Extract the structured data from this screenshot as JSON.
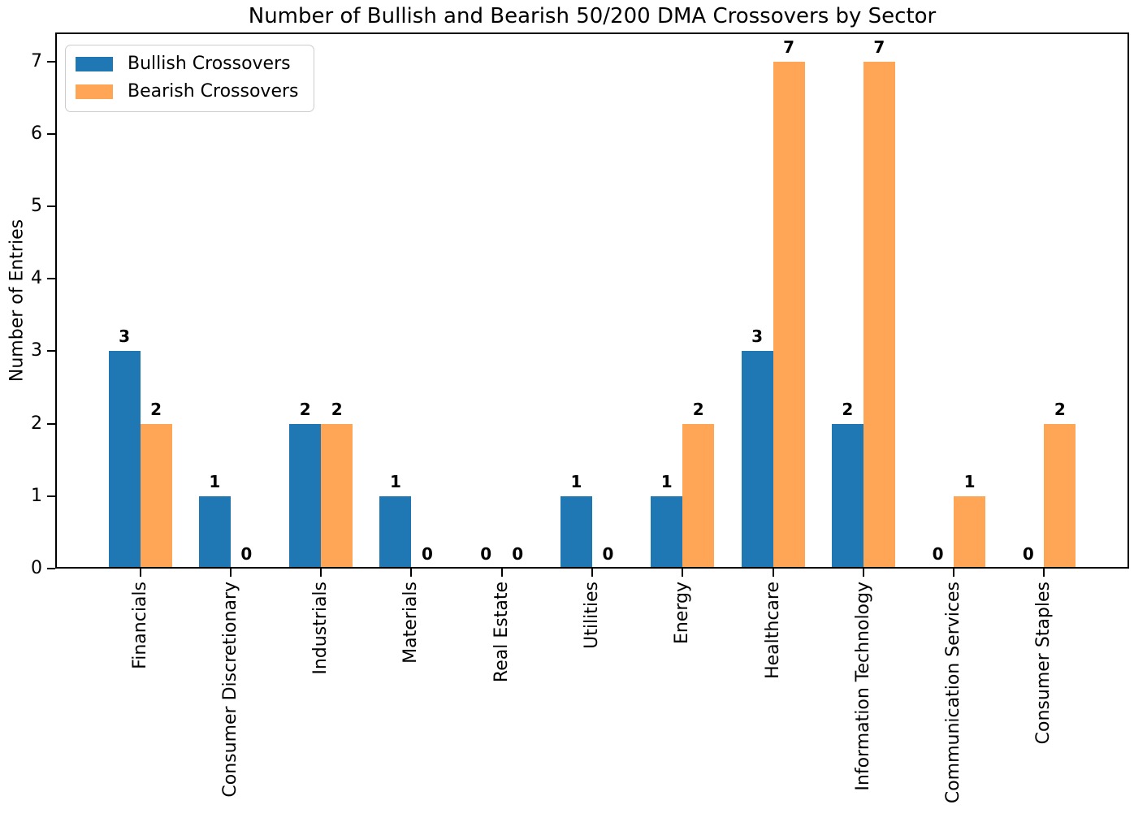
{
  "chart_data": {
    "type": "bar",
    "title": "Number of Bullish and Bearish 50/200 DMA Crossovers by Sector",
    "xlabel": "",
    "ylabel": "Number of Entries",
    "categories": [
      "Financials",
      "Consumer Discretionary",
      "Industrials",
      "Materials",
      "Real Estate",
      "Utilities",
      "Energy",
      "Healthcare",
      "Information Technology",
      "Communication Services",
      "Consumer Staples"
    ],
    "series": [
      {
        "name": "Bullish Crossovers",
        "color": "#1f77b4",
        "values": [
          3,
          1,
          2,
          1,
          0,
          1,
          1,
          3,
          2,
          0,
          0
        ]
      },
      {
        "name": "Bearish Crossovers",
        "color": "#ffa556",
        "values": [
          2,
          0,
          2,
          0,
          0,
          0,
          2,
          7,
          7,
          1,
          2
        ]
      }
    ],
    "yticks": [
      0,
      1,
      2,
      3,
      4,
      5,
      6,
      7
    ],
    "ylim": [
      0,
      7.4
    ],
    "bar_value_labels": true,
    "legend_position": "upper-left",
    "grid": false,
    "x_tick_rotation_deg": 90
  }
}
